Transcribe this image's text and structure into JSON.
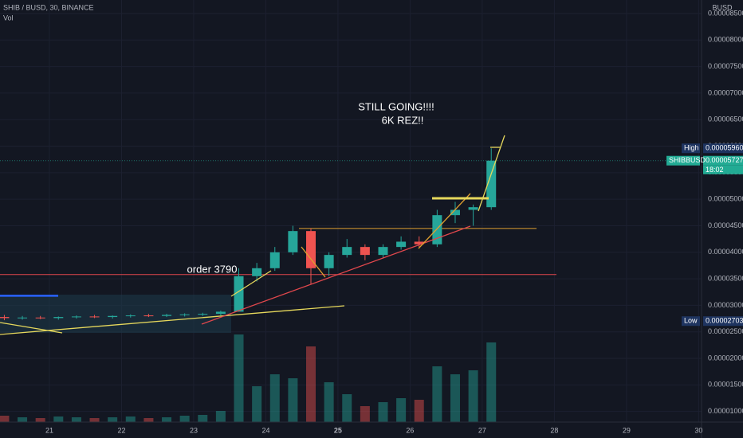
{
  "chart_data": {
    "type": "candlestick",
    "title": "SHIB / BUSD, 30, BINANCE",
    "volume_label": "Vol",
    "currency": "BUSD",
    "annotations": [
      "STILL GOING!!!!",
      "6K REZ!!",
      "order 3790"
    ],
    "x": [
      20.375,
      20.625,
      20.875,
      21.125,
      21.375,
      21.625,
      21.875,
      22.125,
      22.375,
      22.625,
      22.875,
      23.125,
      23.375,
      23.625,
      23.875,
      24.125,
      24.375,
      24.625,
      24.875,
      25.125,
      25.375,
      25.625,
      25.875,
      26.125,
      26.375,
      26.625,
      26.875,
      27.125
    ],
    "open": [
      2.78e-05,
      2.76e-05,
      2.77e-05,
      2.76e-05,
      2.78e-05,
      2.79e-05,
      2.78e-05,
      2.8e-05,
      2.81e-05,
      2.8e-05,
      2.82e-05,
      2.83e-05,
      2.84e-05,
      2.88e-05,
      3.55e-05,
      3.7e-05,
      4e-05,
      4.4e-05,
      3.7e-05,
      3.95e-05,
      4.1e-05,
      3.95e-05,
      4.1e-05,
      4.2e-05,
      4.15e-05,
      4.7e-05,
      4.8e-05,
      4.85e-05
    ],
    "high": [
      2.82e-05,
      2.8e-05,
      2.8e-05,
      2.79e-05,
      2.81e-05,
      2.82e-05,
      2.81e-05,
      2.83e-05,
      2.84e-05,
      2.84e-05,
      2.85e-05,
      2.86e-05,
      2.9e-05,
      3.7e-05,
      3.8e-05,
      4.1e-05,
      4.5e-05,
      4.45e-05,
      4e-05,
      4.25e-05,
      4.15e-05,
      4.15e-05,
      4.3e-05,
      4.3e-05,
      4.8e-05,
      4.95e-05,
      4.9e-05,
      5.96e-05
    ],
    "low": [
      2.72e-05,
      2.73e-05,
      2.74e-05,
      2.73e-05,
      2.75e-05,
      2.76e-05,
      2.75e-05,
      2.77e-05,
      2.78e-05,
      2.78e-05,
      2.79e-05,
      2.8e-05,
      2.81e-05,
      2.88e-05,
      3.45e-05,
      3.65e-05,
      3.95e-05,
      3.4e-05,
      3.55e-05,
      3.9e-05,
      3.85e-05,
      3.9e-05,
      4.05e-05,
      4.1e-05,
      4.1e-05,
      4.55e-05,
      4.5e-05,
      4.8e-05
    ],
    "close": [
      2.76e-05,
      2.77e-05,
      2.76e-05,
      2.78e-05,
      2.79e-05,
      2.78e-05,
      2.8e-05,
      2.81e-05,
      2.8e-05,
      2.82e-05,
      2.83e-05,
      2.84e-05,
      2.88e-05,
      3.55e-05,
      3.7e-05,
      4e-05,
      4.4e-05,
      3.7e-05,
      3.95e-05,
      4.1e-05,
      3.95e-05,
      4.1e-05,
      4.2e-05,
      4.15e-05,
      4.7e-05,
      4.8e-05,
      4.85e-05,
      5.727e-05
    ],
    "volume": [
      8,
      6,
      5,
      7,
      6,
      5,
      6,
      7,
      5,
      6,
      8,
      9,
      14,
      110,
      45,
      60,
      55,
      95,
      50,
      35,
      20,
      25,
      30,
      28,
      70,
      60,
      65,
      100
    ],
    "up_color": "#26a69a",
    "down_color": "#ef5350",
    "levels": [
      {
        "value": 3.58e-05,
        "color": "#e0474c"
      },
      {
        "value": 4.45e-05,
        "color": "#e0a030"
      },
      {
        "value": 3.18e-05,
        "color": "#2962ff"
      }
    ],
    "xlim": [
      20.315,
      30.04
    ],
    "xticks": [
      21,
      22,
      23,
      24,
      25,
      26,
      27,
      28,
      29,
      30
    ],
    "ylim": [
      8e-06,
      8.755e-05
    ],
    "yticks": [
      {
        "value": 8.5e-05,
        "label": "0.00008500"
      },
      {
        "value": 8e-05,
        "label": "0.00008000"
      },
      {
        "value": 7.5e-05,
        "label": "0.00007500"
      },
      {
        "value": 7e-05,
        "label": "0.00007000"
      },
      {
        "value": 6.5e-05,
        "label": "0.00006500"
      },
      {
        "value": 6e-05,
        "label": "0.00006000"
      },
      {
        "value": 5.5e-05,
        "label": "0.00005500"
      },
      {
        "value": 5e-05,
        "label": "0.00005000"
      },
      {
        "value": 4.5e-05,
        "label": "0.00004500"
      },
      {
        "value": 4e-05,
        "label": "0.00004000"
      },
      {
        "value": 3.5e-05,
        "label": "0.00003500"
      },
      {
        "value": 3e-05,
        "label": "0.00003000"
      },
      {
        "value": 2.5e-05,
        "label": "0.00002500"
      },
      {
        "value": 2e-05,
        "label": "0.00002000"
      },
      {
        "value": 1.5e-05,
        "label": "0.00001500"
      },
      {
        "value": 1e-05,
        "label": "0.00001000"
      }
    ],
    "high_tag": {
      "name": "High",
      "value": 5.96e-05,
      "label": "0.00005960"
    },
    "low_tag": {
      "name": "Low",
      "value": 2.703e-05,
      "label": "0.00002703"
    },
    "last_tag": {
      "name": "SHIBBUSD",
      "value": 5.727e-05,
      "label": "0.00005727",
      "countdown": "18:02"
    }
  }
}
